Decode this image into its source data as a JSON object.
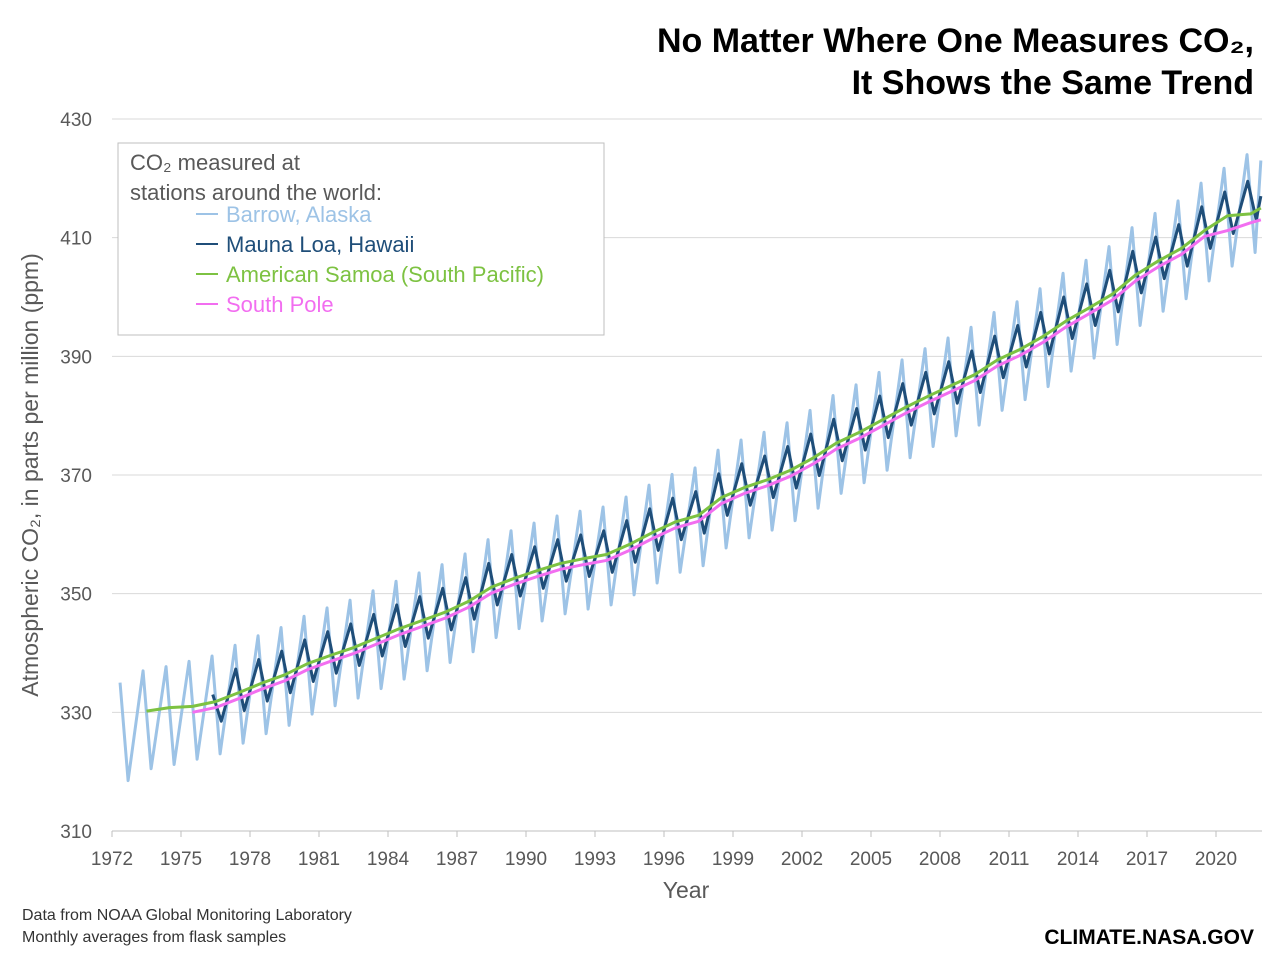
{
  "chart_data": {
    "type": "line",
    "title_lines": [
      "No Matter Where One Measures CO₂,",
      "It Shows the Same Trend"
    ],
    "x_label": "Year",
    "y_label": "Atmospheric CO₂, in parts per million (ppm)",
    "legend_title": [
      "CO₂ measured at",
      "stations around the world:"
    ],
    "footnotes": [
      "Data from NOAA Global Monitoring Laboratory",
      "Monthly averages from flask samples"
    ],
    "credit": "CLIMATE.NASA.GOV",
    "xlim": [
      1972,
      2022
    ],
    "xticks": [
      1972,
      1975,
      1978,
      1981,
      1984,
      1987,
      1990,
      1993,
      1996,
      1999,
      2002,
      2005,
      2008,
      2011,
      2014,
      2017,
      2020
    ],
    "ylim": [
      310,
      430
    ],
    "yticks": [
      310,
      330,
      350,
      370,
      390,
      410,
      430
    ],
    "grid": true,
    "series": [
      {
        "name": "Barrow, Alaska",
        "color": "#9dc3e6",
        "x": [
          1972.35,
          1972.7,
          1973.35,
          1973.7,
          1974.35,
          1974.7,
          1975.35,
          1975.7,
          1976.35,
          1976.7,
          1977.35,
          1977.7,
          1978.35,
          1978.7,
          1979.35,
          1979.7,
          1980.35,
          1980.7,
          1981.35,
          1981.7,
          1982.35,
          1982.7,
          1983.35,
          1983.7,
          1984.35,
          1984.7,
          1985.35,
          1985.7,
          1986.35,
          1986.7,
          1987.35,
          1987.7,
          1988.35,
          1988.7,
          1989.35,
          1989.7,
          1990.35,
          1990.7,
          1991.35,
          1991.7,
          1992.35,
          1992.7,
          1993.35,
          1993.7,
          1994.35,
          1994.7,
          1995.35,
          1995.7,
          1996.35,
          1996.7,
          1997.35,
          1997.7,
          1998.35,
          1998.7,
          1999.35,
          1999.7,
          2000.35,
          2000.7,
          2001.35,
          2001.7,
          2002.35,
          2002.7,
          2003.35,
          2003.7,
          2004.35,
          2004.7,
          2005.35,
          2005.7,
          2006.35,
          2006.7,
          2007.35,
          2007.7,
          2008.35,
          2008.7,
          2009.35,
          2009.7,
          2010.35,
          2010.7,
          2011.35,
          2011.7,
          2012.35,
          2012.7,
          2013.35,
          2013.7,
          2014.35,
          2014.7,
          2015.35,
          2015.7,
          2016.35,
          2016.7,
          2017.35,
          2017.7,
          2018.35,
          2018.7,
          2019.35,
          2019.7,
          2020.35,
          2020.7,
          2021.35,
          2021.7,
          2021.95
        ],
        "values": [
          335.0,
          318.5,
          337.0,
          320.5,
          337.7,
          321.2,
          338.6,
          322.1,
          339.5,
          323.0,
          341.3,
          324.8,
          342.9,
          326.4,
          344.3,
          327.8,
          346.2,
          329.7,
          347.6,
          331.1,
          348.9,
          332.4,
          350.5,
          334.0,
          352.1,
          335.6,
          353.5,
          337.0,
          354.9,
          338.4,
          356.7,
          340.2,
          359.1,
          342.6,
          360.6,
          344.1,
          361.9,
          345.4,
          363.1,
          346.6,
          363.9,
          347.4,
          364.6,
          348.1,
          366.3,
          349.8,
          368.3,
          351.8,
          370.1,
          353.6,
          371.2,
          354.7,
          374.2,
          357.7,
          375.9,
          359.4,
          377.2,
          360.7,
          378.8,
          362.3,
          380.9,
          364.4,
          383.4,
          366.9,
          385.2,
          368.7,
          387.3,
          370.8,
          389.4,
          372.9,
          391.3,
          374.8,
          393.1,
          376.6,
          394.9,
          378.4,
          397.4,
          380.9,
          399.2,
          382.7,
          401.4,
          384.9,
          404.0,
          387.5,
          406.2,
          389.7,
          408.5,
          392.0,
          411.7,
          395.2,
          414.1,
          397.6,
          416.2,
          399.7,
          419.2,
          402.7,
          421.7,
          405.2,
          424.0,
          407.5,
          423.0
        ]
      },
      {
        "name": "Mauna Loa, Hawaii",
        "color": "#1f4e79",
        "x": [
          1976.38,
          1976.75,
          1977.38,
          1977.75,
          1978.38,
          1978.75,
          1979.38,
          1979.75,
          1980.38,
          1980.75,
          1981.38,
          1981.75,
          1982.38,
          1982.75,
          1983.38,
          1983.75,
          1984.38,
          1984.75,
          1985.38,
          1985.75,
          1986.38,
          1986.75,
          1987.38,
          1987.75,
          1988.38,
          1988.75,
          1989.38,
          1989.75,
          1990.38,
          1990.75,
          1991.38,
          1991.75,
          1992.38,
          1992.75,
          1993.38,
          1993.75,
          1994.38,
          1994.75,
          1995.38,
          1995.75,
          1996.38,
          1996.75,
          1997.38,
          1997.75,
          1998.38,
          1998.75,
          1999.38,
          1999.75,
          2000.38,
          2000.75,
          2001.38,
          2001.75,
          2002.38,
          2002.75,
          2003.38,
          2003.75,
          2004.38,
          2004.75,
          2005.38,
          2005.75,
          2006.38,
          2006.75,
          2007.38,
          2007.75,
          2008.38,
          2008.75,
          2009.38,
          2009.75,
          2010.38,
          2010.75,
          2011.38,
          2011.75,
          2012.38,
          2012.75,
          2013.38,
          2013.75,
          2014.38,
          2014.75,
          2015.38,
          2015.75,
          2016.38,
          2016.75,
          2017.38,
          2017.75,
          2018.38,
          2018.75,
          2019.38,
          2019.75,
          2020.38,
          2020.75,
          2021.38,
          2021.75,
          2021.95
        ],
        "values": [
          333.0,
          328.5,
          337.3,
          330.3,
          338.9,
          331.9,
          340.3,
          333.3,
          342.2,
          335.2,
          343.6,
          336.6,
          344.9,
          337.9,
          346.5,
          339.5,
          348.1,
          341.1,
          349.5,
          342.5,
          350.9,
          343.9,
          352.7,
          345.7,
          355.1,
          348.1,
          356.6,
          349.6,
          357.9,
          350.9,
          359.1,
          352.1,
          359.9,
          352.9,
          360.6,
          353.6,
          362.3,
          355.3,
          364.3,
          357.3,
          366.1,
          359.1,
          367.2,
          360.2,
          370.2,
          363.2,
          371.9,
          364.9,
          373.2,
          366.2,
          374.8,
          367.8,
          376.9,
          369.9,
          379.4,
          372.4,
          381.2,
          374.2,
          383.3,
          376.3,
          385.4,
          378.4,
          387.3,
          380.3,
          389.1,
          382.1,
          390.9,
          383.9,
          393.4,
          386.4,
          395.2,
          388.2,
          397.4,
          390.4,
          400.0,
          393.0,
          402.2,
          395.2,
          404.5,
          397.5,
          407.7,
          400.7,
          410.1,
          403.1,
          412.2,
          405.2,
          415.2,
          408.2,
          417.7,
          410.7,
          419.5,
          413.0,
          417.0
        ]
      },
      {
        "name": "American Samoa (South Pacific)",
        "color": "#7dc242",
        "x": [
          1973.5,
          1974.5,
          1975.5,
          1976.5,
          1977.5,
          1978.5,
          1979.5,
          1980.5,
          1981.5,
          1982.5,
          1983.5,
          1984.5,
          1985.5,
          1986.5,
          1987.5,
          1988.5,
          1989.5,
          1990.5,
          1991.5,
          1992.5,
          1993.5,
          1994.5,
          1995.5,
          1996.5,
          1997.5,
          1998.5,
          1999.5,
          2000.5,
          2001.5,
          2002.5,
          2003.5,
          2004.5,
          2005.5,
          2006.5,
          2007.5,
          2008.5,
          2009.5,
          2010.5,
          2011.5,
          2012.5,
          2013.5,
          2014.5,
          2015.5,
          2016.5,
          2017.5,
          2018.5,
          2019.5,
          2020.5,
          2021.5,
          2021.95
        ],
        "values": [
          330.2,
          330.8,
          331.0,
          331.8,
          333.3,
          334.9,
          336.3,
          338.2,
          339.6,
          340.9,
          342.5,
          344.1,
          345.5,
          346.9,
          348.7,
          351.1,
          352.6,
          353.9,
          355.1,
          355.9,
          356.6,
          358.3,
          360.3,
          362.1,
          363.2,
          366.2,
          367.9,
          369.2,
          370.8,
          372.9,
          375.4,
          377.2,
          379.3,
          381.4,
          383.3,
          385.1,
          386.9,
          389.4,
          391.2,
          393.4,
          396.0,
          398.2,
          400.5,
          403.7,
          406.1,
          408.2,
          411.2,
          413.7,
          414.0,
          415.0
        ]
      },
      {
        "name": "South Pole",
        "color": "#f26ef0",
        "x": [
          1975.5,
          1976.5,
          1977.5,
          1978.5,
          1979.5,
          1980.5,
          1981.5,
          1982.5,
          1983.5,
          1984.5,
          1985.5,
          1986.5,
          1987.5,
          1988.5,
          1989.5,
          1990.5,
          1991.5,
          1992.5,
          1993.5,
          1994.5,
          1995.5,
          1996.5,
          1997.5,
          1998.5,
          1999.5,
          2000.5,
          2001.5,
          2002.5,
          2003.5,
          2004.5,
          2005.5,
          2006.5,
          2007.5,
          2008.5,
          2009.5,
          2010.5,
          2011.5,
          2012.5,
          2013.5,
          2014.5,
          2015.5,
          2016.5,
          2017.5,
          2018.5,
          2019.5,
          2020.5,
          2021.5,
          2021.95
        ],
        "values": [
          330.0,
          330.8,
          332.3,
          333.9,
          335.3,
          337.2,
          338.6,
          339.9,
          341.5,
          343.1,
          344.5,
          345.9,
          347.7,
          350.1,
          351.6,
          352.9,
          354.1,
          354.9,
          355.6,
          357.3,
          359.3,
          361.1,
          362.2,
          365.2,
          366.9,
          368.2,
          369.8,
          371.9,
          374.4,
          376.2,
          378.3,
          380.4,
          382.3,
          384.1,
          385.9,
          388.4,
          390.2,
          392.4,
          395.0,
          397.2,
          399.5,
          402.7,
          405.1,
          407.2,
          410.2,
          411.2,
          412.5,
          413.0
        ]
      }
    ]
  }
}
